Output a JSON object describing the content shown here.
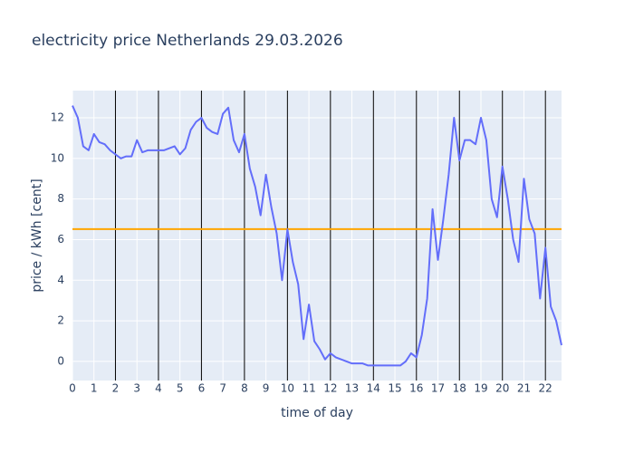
{
  "chart_data": {
    "type": "line",
    "title": "electricity price Netherlands 29.03.2026",
    "xlabel": "time of day",
    "ylabel": "price / kWh [cent]",
    "x": [
      0,
      0.25,
      0.5,
      0.75,
      1,
      1.25,
      1.5,
      1.75,
      2,
      2.25,
      2.5,
      2.75,
      3,
      3.25,
      3.5,
      3.75,
      4,
      4.25,
      4.5,
      4.75,
      5,
      5.25,
      5.5,
      5.75,
      6,
      6.25,
      6.5,
      6.75,
      7,
      7.25,
      7.5,
      7.75,
      8,
      8.25,
      8.5,
      8.75,
      9,
      9.25,
      9.5,
      9.75,
      10,
      10.25,
      10.5,
      10.75,
      11,
      11.25,
      11.5,
      11.75,
      12,
      12.25,
      12.5,
      12.75,
      13,
      13.25,
      13.5,
      13.75,
      14,
      14.25,
      14.5,
      14.75,
      15,
      15.25,
      15.5,
      15.75,
      16,
      16.25,
      16.5,
      16.75,
      17,
      17.25,
      17.5,
      17.75,
      18,
      18.25,
      18.5,
      18.75,
      19,
      19.25,
      19.5,
      19.75,
      20,
      20.25,
      20.5,
      20.75,
      21,
      21.25,
      21.5,
      21.75,
      22,
      22.25,
      22.5,
      22.75
    ],
    "series": [
      {
        "name": "price",
        "color": "#636efa",
        "values": [
          12.6,
          12.0,
          10.6,
          10.4,
          11.2,
          10.8,
          10.7,
          10.4,
          10.2,
          10.0,
          10.1,
          10.1,
          10.9,
          10.3,
          10.4,
          10.4,
          10.4,
          10.4,
          10.5,
          10.6,
          10.2,
          10.5,
          11.4,
          11.8,
          12.0,
          11.5,
          11.3,
          11.2,
          12.2,
          12.5,
          10.9,
          10.3,
          11.2,
          9.5,
          8.6,
          7.2,
          9.2,
          7.6,
          6.3,
          4.0,
          6.5,
          4.9,
          3.8,
          1.1,
          2.8,
          1.0,
          0.6,
          0.1,
          0.4,
          0.2,
          0.1,
          0.0,
          -0.1,
          -0.1,
          -0.1,
          -0.2,
          -0.2,
          -0.2,
          -0.2,
          -0.2,
          -0.2,
          -0.2,
          0.0,
          0.4,
          0.2,
          1.3,
          3.1,
          7.5,
          5.0,
          7.0,
          9.2,
          12.0,
          9.9,
          10.9,
          10.9,
          10.7,
          12.0,
          10.9,
          8.0,
          7.1,
          9.6,
          8.0,
          6.0,
          4.9,
          9.0,
          7.0,
          6.3,
          3.1,
          5.6,
          2.7,
          2.0,
          0.8
        ]
      }
    ],
    "hline": {
      "y": 6.52,
      "color": "#ffa500"
    },
    "vlines": {
      "x": [
        2,
        4,
        6,
        8,
        10,
        12,
        14,
        16,
        18,
        20,
        22
      ],
      "color": "#000000"
    },
    "xlim": [
      0,
      22.75
    ],
    "ylim": [
      -0.94,
      13.34
    ],
    "xticks": [
      0,
      1,
      2,
      3,
      4,
      5,
      6,
      7,
      8,
      9,
      10,
      11,
      12,
      13,
      14,
      15,
      16,
      17,
      18,
      19,
      20,
      21,
      22
    ],
    "yticks": [
      0,
      2,
      4,
      6,
      8,
      10,
      12
    ],
    "grid": true,
    "background": "#e5ecf6"
  }
}
